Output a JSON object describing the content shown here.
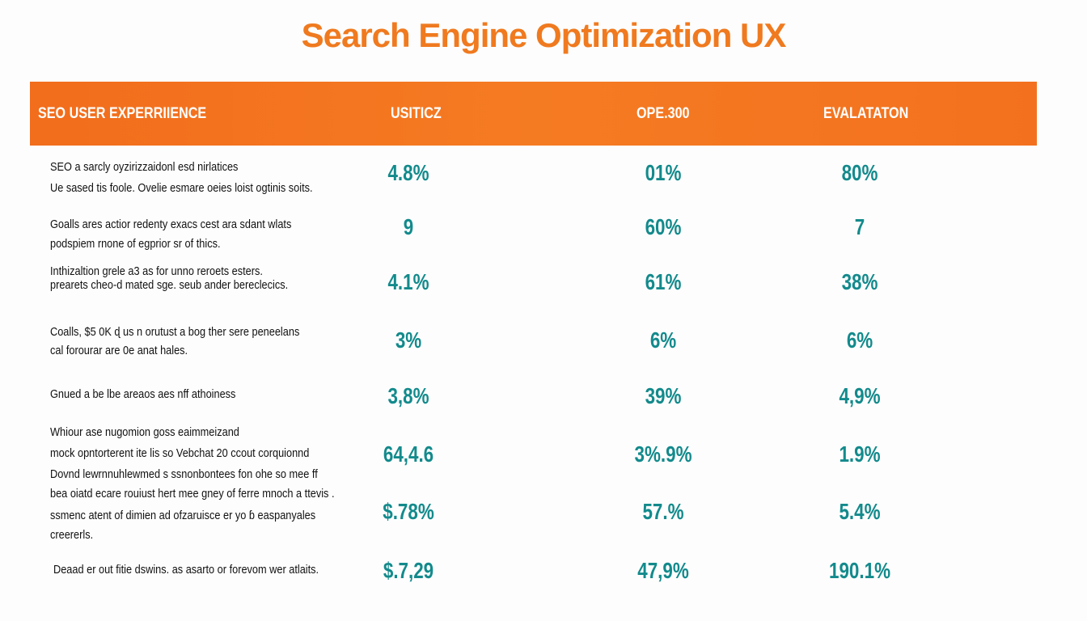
{
  "header": {
    "title": "Search Engine Optimization UX"
  },
  "table": {
    "columns": [
      "SEO USER EXPERRIIENCE",
      "USITICZ",
      "OPE.300",
      "EVALATATON"
    ],
    "rows": [
      {
        "description": [
          "SEO a sarcly oyzirizzaidonl esd nirlatices",
          "Ue sased tis foole. Ovelie esmare oeies loist ogtinis soits."
        ],
        "values": [
          "4.8%",
          "01%",
          "80%"
        ]
      },
      {
        "description": [
          "Goalls ares actior redenty exacs cest ara sdant wlats",
          "podspiem rnone of egprior sr of thics."
        ],
        "values": [
          "9",
          "60%",
          "7"
        ]
      },
      {
        "description": [
          "Inthizaltion grele a3 as for unno reroets esters.",
          "prearets cheo-d mated sge. seub ander bereclecics."
        ],
        "values": [
          "4.1%",
          "61%",
          "38%"
        ]
      },
      {
        "description": [
          "Coalls, $5 0K ɖ us n orutust a bog ther sere peneelans",
          "cal forourar are 0e anat hales."
        ],
        "values": [
          "3%",
          "6%",
          "6%"
        ]
      },
      {
        "description": [
          "Gnued a be lbe areaos aes nff athoiness"
        ],
        "values": [
          "3,8%",
          "39%",
          "4,9%"
        ]
      },
      {
        "description": [
          "Whiour ase nugomion goss eaimmeizand",
          "mock opntorterent ite lis so Vebchat 20 ccout corquionnd",
          "Dovnd lewrnnuhlewmed s ssnonbontees fon ohe so mee ff"
        ],
        "values": [
          "64,4.6",
          "3%.9%",
          "1.9%"
        ]
      },
      {
        "description": [
          "bea oiatd ecare rouiust hert mee gney of ferre mnoch a ttevis .",
          "ssmenc atent of dimien ad ofzaruisce er yo ɓ easpanyales",
          "creererls."
        ],
        "values": [
          "$.78%",
          "57.%",
          "5.4%"
        ]
      },
      {
        "description": [
          "Deaad er out fitie dswins. as asarto or forevom wer atlaits."
        ],
        "values": [
          "$.7,29",
          "47,9%",
          "190.1%"
        ]
      }
    ]
  }
}
